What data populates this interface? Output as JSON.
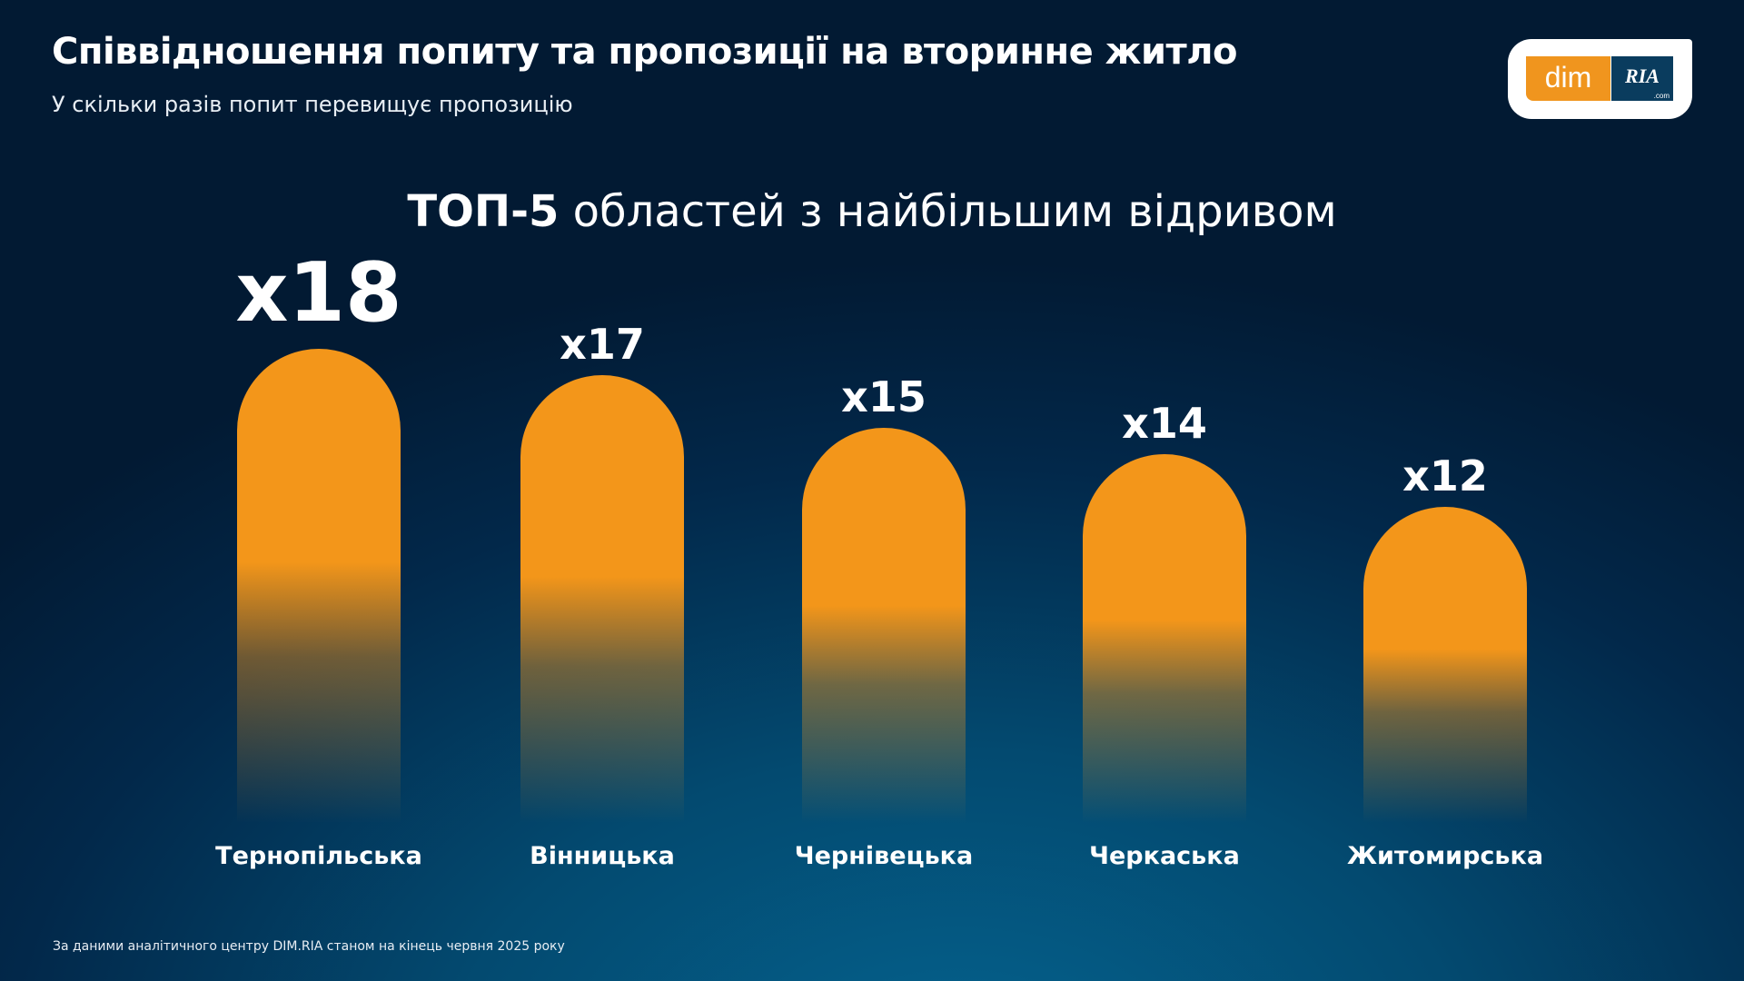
{
  "header": {
    "title": "Співвідношення попиту та пропозиції на вторинне житло",
    "subtitle": "У скільки разів попит перевищує пропозицію"
  },
  "logo": {
    "dim": "dim",
    "ria": "RIA",
    ".com": ".com"
  },
  "footer": "За даними аналітичного центру DIM.RIA станом на кінець червня 2025 року",
  "colors": {
    "bar": "#f3961a",
    "background": "#02284a"
  },
  "chart_data": {
    "type": "bar",
    "title_bold": "ТОП-5",
    "title_rest": " областей з найбільшим відривом",
    "categories": [
      "Тернопільська",
      "Вінницька",
      "Чернівецька",
      "Черкаська",
      "Житомирська"
    ],
    "values": [
      18,
      17,
      15,
      14,
      12
    ],
    "labels": [
      "x18",
      "x17",
      "x15",
      "x14",
      "x12"
    ],
    "grid": false
  }
}
